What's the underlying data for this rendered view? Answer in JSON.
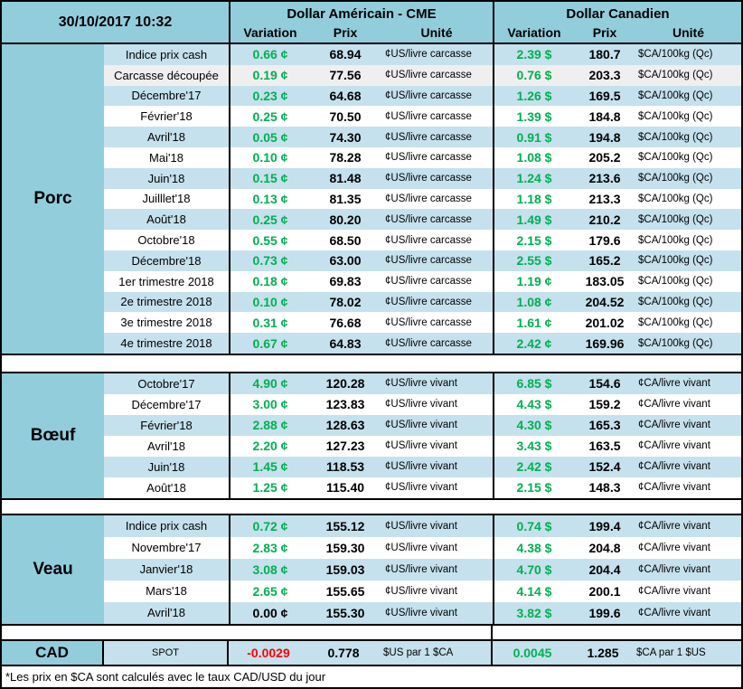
{
  "header": {
    "timestamp": "30/10/2017 10:32",
    "usd": {
      "title": "Dollar Américain - CME",
      "columns": [
        "Variation",
        "Prix",
        "Unité"
      ]
    },
    "cad": {
      "title": "Dollar Canadien",
      "columns": [
        "Variation",
        "Prix",
        "Unité"
      ]
    }
  },
  "colors": {
    "medium_blue": "#92CDDC",
    "band_blue": "#C5E1ED",
    "row_white": "#FFFFFF",
    "row_gray": "#EFEFEF",
    "positive": "#00B050",
    "negative": "#FF0000",
    "neutral": "#000000"
  },
  "sections": [
    {
      "category": "Porc",
      "us_unit": "¢US/livre carcasse",
      "ca_unit": "$CA/100kg (Qc)",
      "rows": [
        {
          "label": "Indice prix cash",
          "us_var": "0.66 ¢",
          "us_prix": "68.94",
          "ca_var": "2.39 $",
          "ca_prix": "180.7"
        },
        {
          "label": "Carcasse découpée",
          "us_var": "0.19 ¢",
          "us_prix": "77.56",
          "ca_var": "0.76 $",
          "ca_prix": "203.3",
          "bg": "#EFEFEF"
        },
        {
          "label": "Décembre'17",
          "us_var": "0.23 ¢",
          "us_prix": "64.68",
          "ca_var": "1.26 $",
          "ca_prix": "169.5"
        },
        {
          "label": "Février'18",
          "us_var": "0.25 ¢",
          "us_prix": "70.50",
          "ca_var": "1.39 $",
          "ca_prix": "184.8"
        },
        {
          "label": "Avril'18",
          "us_var": "0.05 ¢",
          "us_prix": "74.30",
          "ca_var": "0.91 $",
          "ca_prix": "194.8"
        },
        {
          "label": "Mai'18",
          "us_var": "0.10 ¢",
          "us_prix": "78.28",
          "ca_var": "1.08 $",
          "ca_prix": "205.2"
        },
        {
          "label": "Juin'18",
          "us_var": "0.15 ¢",
          "us_prix": "81.48",
          "ca_var": "1.24 $",
          "ca_prix": "213.6"
        },
        {
          "label": "Juilllet'18",
          "us_var": "0.13 ¢",
          "us_prix": "81.35",
          "ca_var": "1.18 $",
          "ca_prix": "213.3"
        },
        {
          "label": "Août'18",
          "us_var": "0.25 ¢",
          "us_prix": "80.20",
          "ca_var": "1.49 $",
          "ca_prix": "210.2"
        },
        {
          "label": "Octobre'18",
          "us_var": "0.55 ¢",
          "us_prix": "68.50",
          "ca_var": "2.15 $",
          "ca_prix": "179.6"
        },
        {
          "label": "Décembre'18",
          "us_var": "0.73 ¢",
          "us_prix": "63.00",
          "ca_var": "2.55 $",
          "ca_prix": "165.2"
        },
        {
          "label": "1er trimestre 2018",
          "us_var": "0.18 ¢",
          "us_prix": "69.83",
          "ca_var": "1.19 ¢",
          "ca_prix": "183.05"
        },
        {
          "label": "2e trimestre 2018",
          "us_var": "0.10 ¢",
          "us_prix": "78.02",
          "ca_var": "1.08 ¢",
          "ca_prix": "204.52"
        },
        {
          "label": "3e trimestre 2018",
          "us_var": "0.31 ¢",
          "us_prix": "76.68",
          "ca_var": "1.61 ¢",
          "ca_prix": "201.02"
        },
        {
          "label": "4e trimestre 2018",
          "us_var": "0.67 ¢",
          "us_prix": "64.83",
          "ca_var": "2.42 ¢",
          "ca_prix": "169.96"
        }
      ]
    },
    {
      "category": "Bœuf",
      "us_unit": "¢US/livre vivant",
      "ca_unit": "¢CA/livre vivant",
      "rows": [
        {
          "label": "Octobre'17",
          "us_var": "4.90 ¢",
          "us_prix": "120.28",
          "ca_var": "6.85 $",
          "ca_prix": "154.6"
        },
        {
          "label": "Décembre'17",
          "us_var": "3.00 ¢",
          "us_prix": "123.83",
          "ca_var": "4.43 $",
          "ca_prix": "159.2"
        },
        {
          "label": "Février'18",
          "us_var": "2.88 ¢",
          "us_prix": "128.63",
          "ca_var": "4.30 $",
          "ca_prix": "165.3"
        },
        {
          "label": "Avril'18",
          "us_var": "2.20 ¢",
          "us_prix": "127.23",
          "ca_var": "3.43 $",
          "ca_prix": "163.5"
        },
        {
          "label": "Juin'18",
          "us_var": "1.45 ¢",
          "us_prix": "118.53",
          "ca_var": "2.42 $",
          "ca_prix": "152.4"
        },
        {
          "label": "Août'18",
          "us_var": "1.25 ¢",
          "us_prix": "115.40",
          "ca_var": "2.15 $",
          "ca_prix": "148.3"
        }
      ]
    },
    {
      "category": "Veau",
      "us_unit": "¢US/livre vivant",
      "ca_unit": "¢CA/livre vivant",
      "rows": [
        {
          "label": "Indice prix cash",
          "us_var": "0.72 ¢",
          "us_prix": "155.12",
          "ca_var": "0.74 $",
          "ca_prix": "199.4"
        },
        {
          "label": "Novembre'17",
          "us_var": "2.83 ¢",
          "us_prix": "159.30",
          "ca_var": "4.38 $",
          "ca_prix": "204.8"
        },
        {
          "label": "Janvier'18",
          "us_var": "3.08 ¢",
          "us_prix": "159.03",
          "ca_var": "4.70 $",
          "ca_prix": "204.4"
        },
        {
          "label": "Mars'18",
          "us_var": "2.65 ¢",
          "us_prix": "155.65",
          "ca_var": "4.14 $",
          "ca_prix": "200.1"
        },
        {
          "label": "Avril'18",
          "us_var": "0.00 ¢",
          "us_prix": "155.30",
          "ca_var": "3.82 $",
          "ca_prix": "199.6",
          "us_tone": "neutral"
        }
      ]
    }
  ],
  "cad_row": {
    "category": "CAD",
    "label": "SPOT",
    "us": {
      "variation": "-0.0029",
      "prix": "0.778",
      "unit": "$US par 1 $CA"
    },
    "ca": {
      "variation": "0.0045",
      "prix": "1.285",
      "unit": "$CA par 1 $US"
    }
  },
  "footnote": "*Les  prix en $CA sont calculés avec le taux CAD/USD du jour"
}
